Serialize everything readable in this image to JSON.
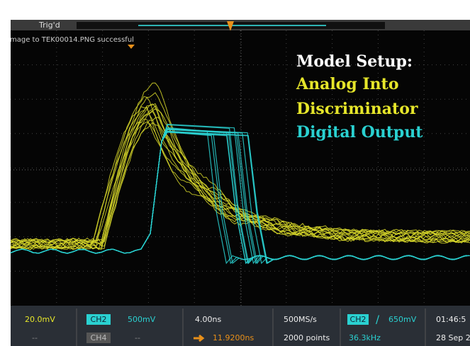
{
  "status": {
    "trigger": "Trig'd",
    "message": "mage to TEK00014.PNG successful"
  },
  "annotation": {
    "title": "Model Setup:",
    "line1": "Analog Into",
    "line2": "Discriminator",
    "line3": "Digital Output"
  },
  "readout": {
    "ch1_scale": "20.0mV",
    "ch1_offset": "--",
    "ch2_badge": "CH2",
    "ch2_scale": "500mV",
    "ch4_badge": "CH4",
    "ch4_scale": "--",
    "timebase": "4.00ns",
    "position": "11.9200ns",
    "sample_rate": "500MS/s",
    "record_length": "2000 points",
    "trigger_badge": "CH2",
    "trigger_slope": "/",
    "trigger_level": "650mV",
    "frequency": "36.3kHz",
    "time": "01:46:5",
    "date": "28 Sep 2"
  }
}
